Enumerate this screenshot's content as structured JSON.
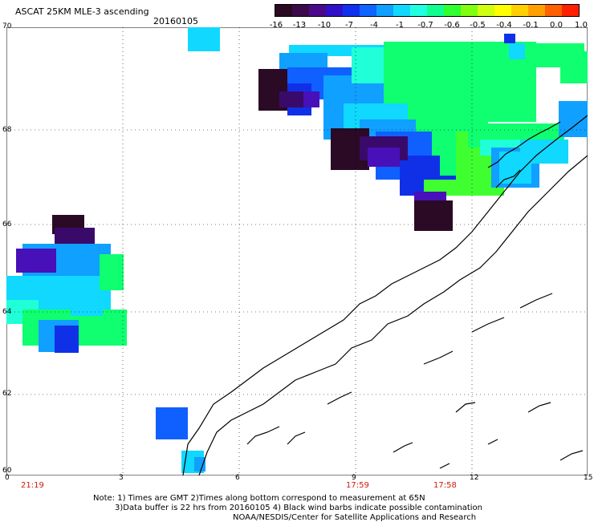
{
  "header": {
    "title": "ASCAT 25KM MLE-3 ascending",
    "date": "20160105"
  },
  "colorbar": {
    "colors": [
      "#2a0a20",
      "#3a0a4a",
      "#4a0a8a",
      "#3010c8",
      "#1030f0",
      "#1064ff",
      "#10a0ff",
      "#10d8ff",
      "#20ffe0",
      "#10ff90",
      "#30ff30",
      "#80ff10",
      "#d0ff10",
      "#ffff00",
      "#ffd000",
      "#ffa000",
      "#ff6000",
      "#ff2000"
    ],
    "labels": [
      "-16",
      "-13",
      "-10",
      "-7",
      "-4",
      "-1",
      "-0.7",
      "-0.6",
      "-0.5",
      "-0.4",
      "-0.1",
      "0.0",
      "1.0"
    ]
  },
  "axes": {
    "lat_labels": [
      "70",
      "68",
      "66",
      "64",
      "62",
      "60"
    ],
    "lon_labels": [
      "0",
      "3",
      "6",
      "9",
      "12",
      "15"
    ]
  },
  "times": [
    "21:19",
    "17:59",
    "17:58"
  ],
  "notes": {
    "line1": "Note: 1) Times are GMT 2)Times along bottom correspond to measurement at 65N",
    "line2": "3)Data buffer is 22 hrs from 20160105 4) Black wind barbs indicate possible contamination",
    "line3": "NOAA/NESDIS/Center for Satellite Applications and Research"
  }
}
